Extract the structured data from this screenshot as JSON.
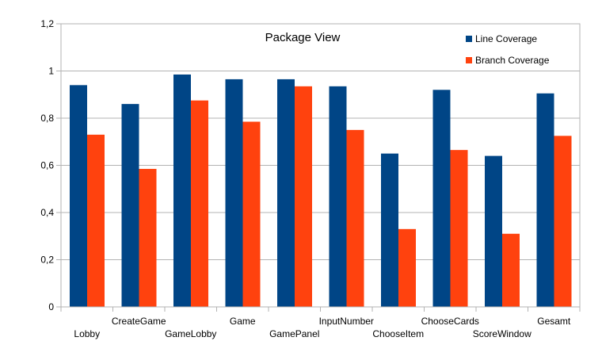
{
  "chart_data": {
    "type": "bar",
    "title": "Package View",
    "categories": [
      "Lobby",
      "CreateGame",
      "GameLobby",
      "Game",
      "GamePanel",
      "InputNumber",
      "ChooseItem",
      "ChooseCards",
      "ScoreWindow",
      "Gesamt"
    ],
    "series": [
      {
        "name": "Line Coverage",
        "color": "#004586",
        "values": [
          0.94,
          0.86,
          0.985,
          0.965,
          0.965,
          0.935,
          0.65,
          0.92,
          0.64,
          0.905
        ]
      },
      {
        "name": "Branch Coverage",
        "color": "#ff420e",
        "values": [
          0.73,
          0.585,
          0.875,
          0.785,
          0.935,
          0.75,
          0.33,
          0.665,
          0.31,
          0.725
        ]
      }
    ],
    "ylim": [
      0,
      1.2
    ],
    "yticks": [
      "0",
      "0,2",
      "0,4",
      "0,6",
      "0,8",
      "1",
      "1,2"
    ],
    "grid": true,
    "legend": "top-right",
    "xlabel": "",
    "ylabel": ""
  }
}
